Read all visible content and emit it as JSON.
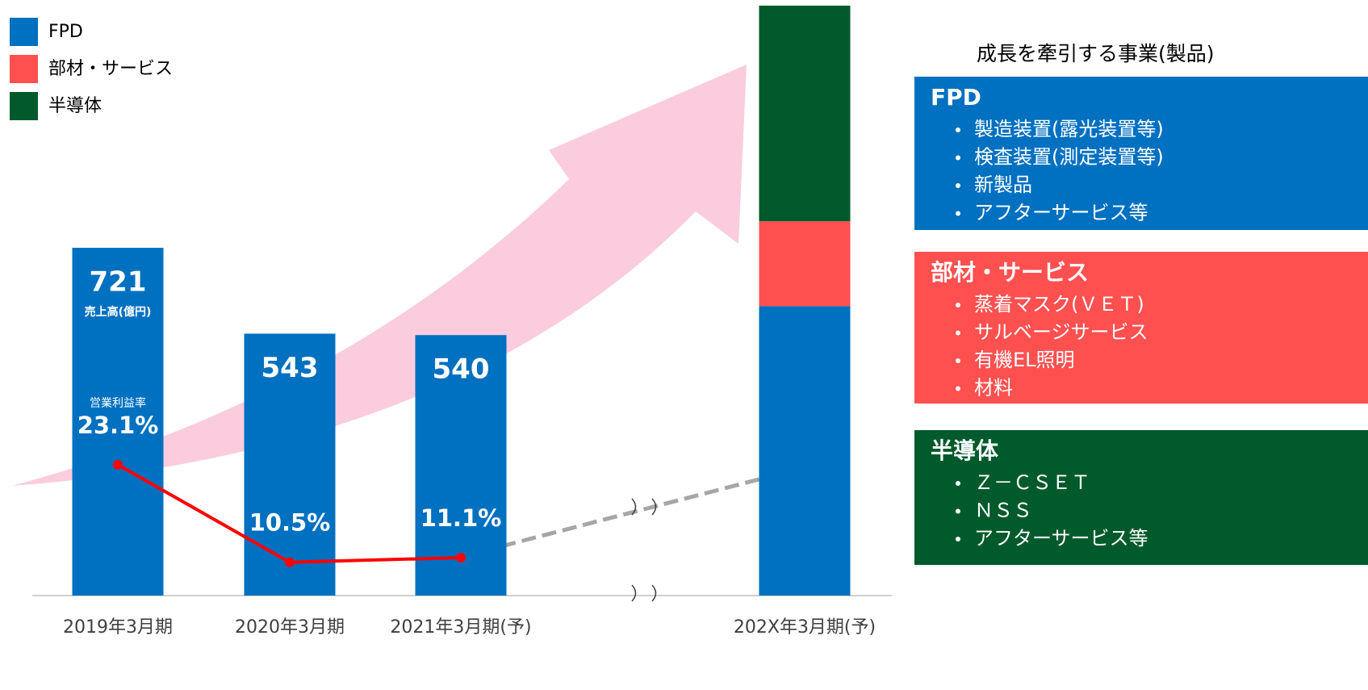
{
  "chart_data": {
    "type": "bar",
    "categories": [
      "2019年3月期",
      "2020年3月期",
      "2021年3月期(予)",
      "202X年3月期(予)"
    ],
    "y_label": "売上高(億円)",
    "ylim": [
      0,
      1223
    ],
    "y2lim": [
      6.2,
      82.4
    ],
    "legend": "top-left",
    "series": [
      {
        "name": "FPD",
        "color": "#0070c0",
        "values": [
          721,
          543,
          540,
          600
        ],
        "value_labels": [
          "721",
          "543",
          "540",
          null
        ]
      },
      {
        "name": "部材・サービス",
        "color": "#ff5050",
        "values": [
          null,
          null,
          null,
          176
        ]
      },
      {
        "name": "半導体",
        "color": "#005a2b",
        "values": [
          null,
          null,
          null,
          447
        ]
      },
      {
        "name": "営業利益率",
        "type": "line",
        "axis": "y2",
        "color": "#ff0000",
        "values": [
          23.1,
          10.5,
          11.1,
          null
        ],
        "value_labels": [
          "23.1%",
          "10.5%",
          "11.1%",
          null
        ]
      }
    ]
  },
  "sidebar": {
    "heading": "成長を牽引する事業(製品)",
    "panels": [
      {
        "title": "FPD",
        "color": "#0070c0",
        "items": [
          "製造装置(露光装置等)",
          "検査装置(測定装置等)",
          "新製品",
          "アフターサービス等"
        ]
      },
      {
        "title": "部材・サービス",
        "color": "#ff5050",
        "items": [
          "蒸着マスク(ＶＥＴ)",
          "サルベージサービス",
          "有機EL照明",
          "材料"
        ]
      },
      {
        "title": "半導体",
        "color": "#005a2b",
        "items": [
          "Ｚ－ＣＳＥＴ",
          "ＮＳＳ",
          "アフターサービス等"
        ]
      }
    ]
  }
}
